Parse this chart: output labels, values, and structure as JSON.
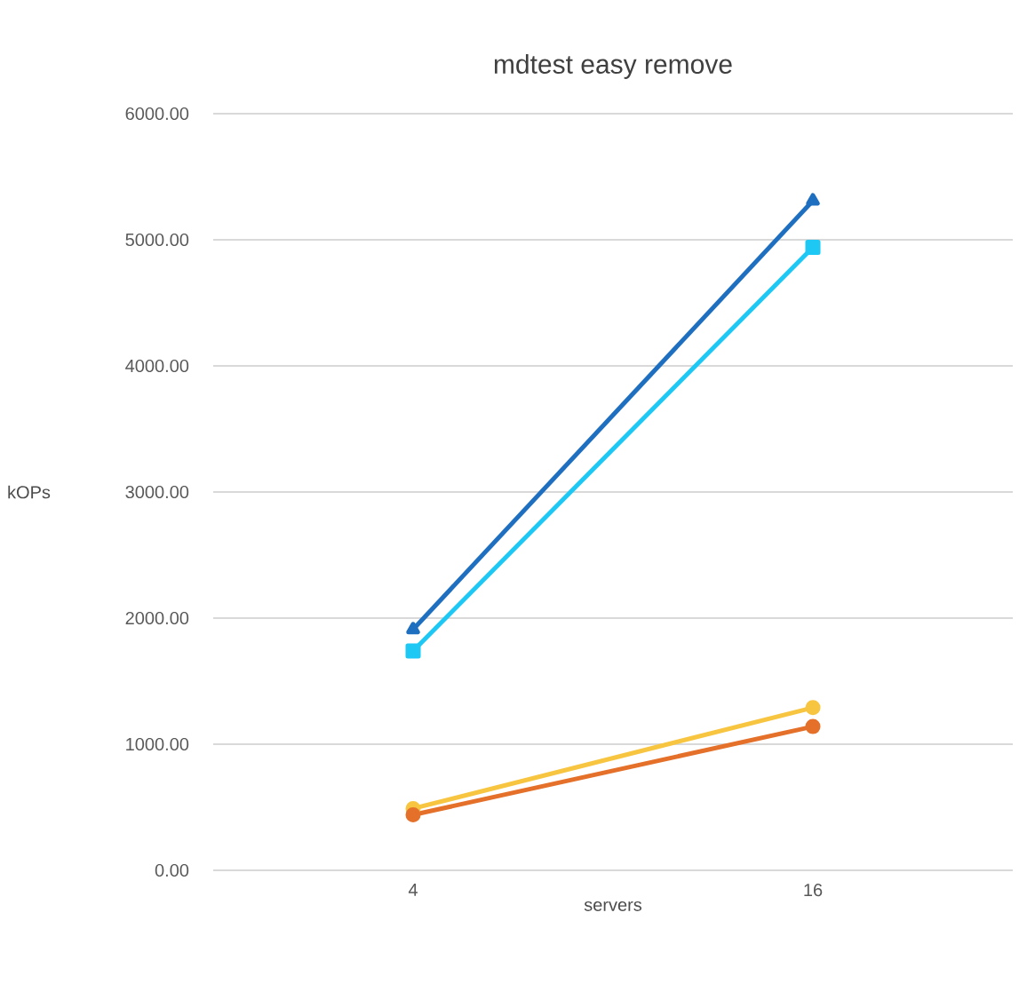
{
  "chart_data": {
    "type": "line",
    "title": "mdtest easy remove",
    "xlabel": "servers",
    "ylabel": "kOPs",
    "categories": [
      "4",
      "16"
    ],
    "series": [
      {
        "color": "#1f6fc0",
        "values": [
          1910,
          5310
        ],
        "marker": "triangle"
      },
      {
        "color": "#1ec8f5",
        "values": [
          1740,
          4940
        ],
        "marker": "square"
      },
      {
        "color": "#f7c540",
        "values": [
          490,
          1290
        ],
        "marker": "circle"
      },
      {
        "color": "#e4702a",
        "values": [
          440,
          1140
        ],
        "marker": "circle"
      }
    ],
    "ylim": [
      0,
      6000
    ],
    "yticks": [
      {
        "value": 0,
        "label": "0.00"
      },
      {
        "value": 1000,
        "label": "1000.00"
      },
      {
        "value": 2000,
        "label": "2000.00"
      },
      {
        "value": 3000,
        "label": "3000.00"
      },
      {
        "value": 4000,
        "label": "4000.00"
      },
      {
        "value": 5000,
        "label": "5000.00"
      },
      {
        "value": 6000,
        "label": "6000.00"
      }
    ],
    "grid": "y",
    "line_style": "solid"
  }
}
